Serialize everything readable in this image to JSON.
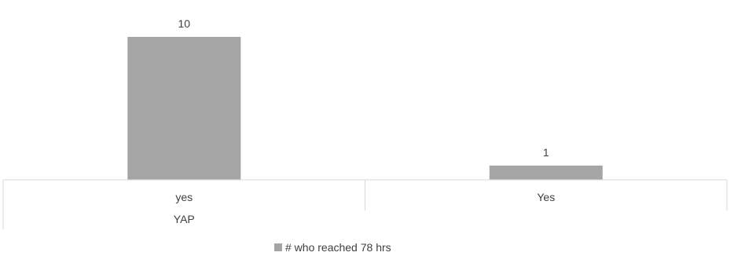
{
  "chart_data": {
    "type": "bar",
    "categories": [
      "yes",
      "Yes"
    ],
    "group_labels": [
      {
        "label": "YAP",
        "span": 1
      },
      {
        "label": "",
        "span": 1
      }
    ],
    "series": [
      {
        "name": "# who reached 78 hrs",
        "values": [
          10,
          1
        ],
        "color": "#a5a5a5"
      }
    ],
    "data_labels": [
      "10",
      "1"
    ],
    "title": "",
    "xlabel": "",
    "ylabel": "",
    "ylim": [
      0,
      10
    ],
    "grid": false,
    "legend": "bottom"
  }
}
